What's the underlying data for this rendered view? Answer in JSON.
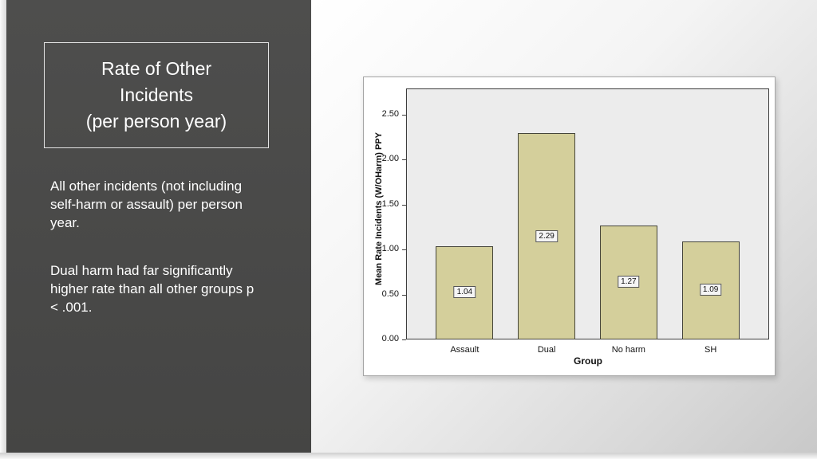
{
  "slide": {
    "title_lines": [
      "Rate of Other",
      "Incidents",
      "(per person year)"
    ],
    "body_paragraphs": [
      "All other incidents (not including self-harm or assault) per person year.",
      "Dual harm had far significantly higher rate than all other groups p < .001."
    ]
  },
  "chart_data": {
    "type": "bar",
    "categories": [
      "Assault",
      "Dual",
      "No harm",
      "SH"
    ],
    "values": [
      1.04,
      2.29,
      1.27,
      1.09
    ],
    "value_labels": [
      "1.04",
      "2.29",
      "1.27",
      "1.09"
    ],
    "title": "",
    "xlabel": "Group",
    "ylabel": "Mean Rate Incidents (W/OHarm) PPY",
    "ylim": [
      0,
      2.79
    ],
    "yticks": [
      0.0,
      0.5,
      1.0,
      1.5,
      2.0,
      2.5
    ],
    "ytick_labels": [
      "0.00",
      "0.50",
      "1.00",
      "1.50",
      "2.00",
      "2.50"
    ],
    "grid": false,
    "legend": "none",
    "bar_color": "#d4cf9b",
    "bar_border_color": "#45453a",
    "plot_bg": "#ececec"
  },
  "colors": {
    "panel_bg": "#4a4a49",
    "panel_text": "#ffffff",
    "title_box_border": "#e4e4e4",
    "chart_frame_border": "#a5a5a5"
  }
}
